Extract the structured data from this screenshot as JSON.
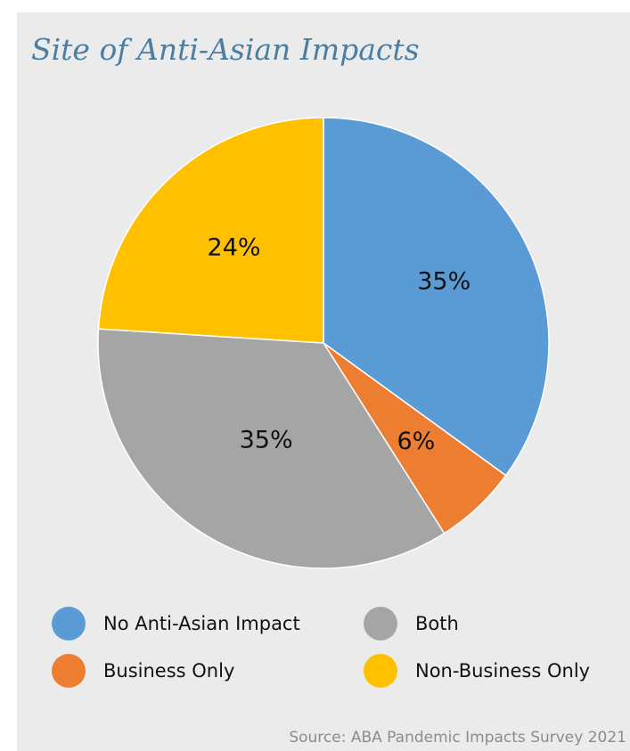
{
  "chart_data": {
    "type": "pie",
    "title": "Site of Anti-Asian Impacts",
    "slices": [
      {
        "label": "No Anti-Asian Impact",
        "value": 35,
        "display": "35%",
        "color": "#5b9bd5"
      },
      {
        "label": "Business Only",
        "value": 6,
        "display": "6%",
        "color": "#ed7d31"
      },
      {
        "label": "Both",
        "value": 35,
        "display": "35%",
        "color": "#a5a5a5"
      },
      {
        "label": "Non-Business Only",
        "value": 24,
        "display": "24%",
        "color": "#ffc000"
      }
    ],
    "legend": [
      {
        "label": "No Anti-Asian Impact",
        "color": "#5b9bd5"
      },
      {
        "label": "Both",
        "color": "#a5a5a5"
      },
      {
        "label": "Business Only",
        "color": "#ed7d31"
      },
      {
        "label": "Non-Business Only",
        "color": "#ffc000"
      }
    ],
    "legend_placement": "bottom"
  },
  "source": "Source: ABA Pandemic Impacts Survey 2021"
}
